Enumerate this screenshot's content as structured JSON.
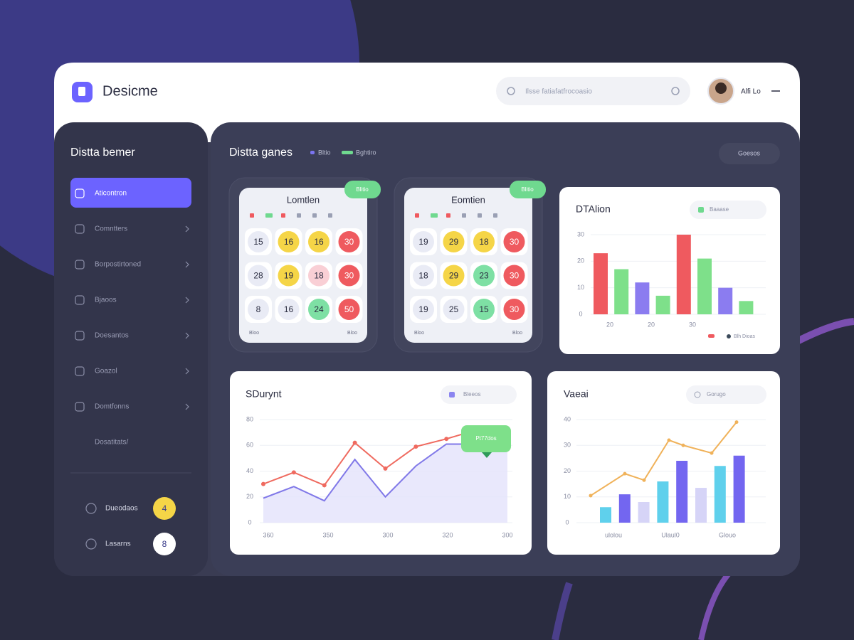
{
  "header": {
    "brand": "Desicme",
    "search_placeholder": "Ilsse fatiafatfrocoasio",
    "user_name": "Alfi Lo"
  },
  "sidebar": {
    "title": "Distta bemer",
    "items": [
      "Aticontron",
      "Comntters",
      "Borpostirtoned",
      "Bjaoos",
      "Doesantos",
      "Goazol",
      "Domtfonns",
      "Dosatitats/"
    ],
    "footer": [
      {
        "label": "Dueodaos",
        "badge": "4"
      },
      {
        "label": "Lasarns",
        "badge": "8"
      }
    ]
  },
  "main": {
    "title": "Distta ganes",
    "legend": [
      {
        "name": "Bltio",
        "color": "#7b74f0"
      },
      {
        "name": "Bghtiro",
        "color": "#6fd98f"
      }
    ],
    "button": "Goesos"
  },
  "bingo_cards": [
    {
      "title": "Lomtlen",
      "badge": "Blitio",
      "rows": [
        [
          15,
          16,
          16,
          30
        ],
        [
          28,
          19,
          18,
          30
        ],
        [
          8,
          16,
          24,
          50
        ]
      ],
      "colors": [
        [
          "#e9ebf5",
          "#f5d547",
          "#f5d547",
          "#ef5a5f"
        ],
        [
          "#e9ebf5",
          "#f5d547",
          "#f9cfd5",
          "#ef5a5f"
        ],
        [
          "#e9ebf5",
          "#e9ebf5",
          "#7ee0a4",
          "#ef5a5f"
        ]
      ],
      "footer": [
        "Bloo",
        "Bloo"
      ]
    },
    {
      "title": "Eomtien",
      "badge": "Blitio",
      "rows": [
        [
          19,
          29,
          18,
          30
        ],
        [
          18,
          29,
          23,
          30
        ],
        [
          19,
          25,
          15,
          30
        ]
      ],
      "colors": [
        [
          "#e9ebf5",
          "#f5d547",
          "#f5d547",
          "#ef5a5f"
        ],
        [
          "#e9ebf5",
          "#f5d547",
          "#7ee0a4",
          "#ef5a5f"
        ],
        [
          "#e9ebf5",
          "#e9ebf5",
          "#7ee0a4",
          "#ef5a5f"
        ]
      ],
      "footer": [
        "Bloo",
        "Bloo"
      ]
    }
  ],
  "bar_chart": {
    "title": "DTAlion",
    "button": "Baaase",
    "values": [
      23,
      17,
      12,
      7,
      30,
      21,
      10,
      5
    ],
    "colors": [
      "#ef5a5f",
      "#7ee08a",
      "#8b7cf0",
      "#7ee08a",
      "#ef5a5f",
      "#7ee08a",
      "#8b7cf0",
      "#7ee08a"
    ],
    "x_labels": [
      "20",
      "20",
      "30"
    ],
    "ylim": [
      0,
      30
    ],
    "yticks": [
      0,
      10,
      20,
      30
    ],
    "legend": "Blh Dioas"
  },
  "line_chart": {
    "title": "SDurynt",
    "button": "Bleeos",
    "tooltip": "Pt77dos",
    "series": [
      {
        "color": "#ef6a5f",
        "values": [
          30,
          39,
          29,
          62,
          42,
          59,
          65,
          72,
          72
        ]
      },
      {
        "color": "#8078e8",
        "values": [
          19,
          28,
          17,
          49,
          20,
          44,
          61,
          61,
          58
        ]
      }
    ],
    "x_labels": [
      "360",
      "350",
      "300",
      "320",
      "300"
    ],
    "ylim": [
      0,
      80
    ],
    "yticks": [
      0,
      20,
      40,
      60,
      80
    ]
  },
  "combo_chart": {
    "title": "Vaeai",
    "button": "Gorugo",
    "bars": [
      6,
      11,
      8,
      16,
      24,
      13.5,
      22,
      26
    ],
    "bar_colors": [
      "#5fd0ec",
      "#7366f0",
      "#d6d4f7",
      "#5fd0ec",
      "#7366f0",
      "#d6d4f7",
      "#5fd0ec",
      "#7366f0"
    ],
    "line": {
      "color": "#f0b25a",
      "values": [
        10.5,
        19,
        16.5,
        32,
        30,
        27,
        39
      ]
    },
    "x_labels": [
      "ulolou",
      "Ulaul0",
      "Glouo"
    ],
    "ylim": [
      0,
      40
    ],
    "yticks": [
      0,
      10,
      20,
      30,
      40
    ]
  }
}
